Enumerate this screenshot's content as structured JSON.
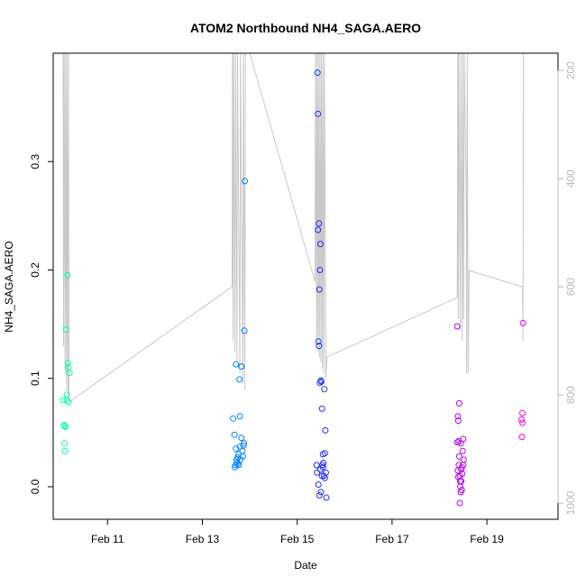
{
  "chart_data": {
    "type": "scatter",
    "title": "ATOM2 Northbound NH4_SAGA.AERO",
    "xlabel": "Date",
    "ylabel": "NH4_SAGA.AERO",
    "x_ticks": [
      "Feb 11",
      "Feb 13",
      "Feb 15",
      "Feb 17",
      "Feb 19"
    ],
    "y_ticks": [
      "0.0",
      "0.1",
      "0.2",
      "0.3"
    ],
    "y2_ticks": [
      "200",
      "400",
      "600",
      "800",
      "1000"
    ],
    "xlim": [
      "2016-02-09 20:30",
      "2016-02-20 12:00"
    ],
    "ylim": [
      -0.03,
      0.4
    ],
    "y2lim": [
      1030,
      168
    ],
    "y2_reversed": true,
    "grid": false,
    "legend": "none",
    "colors": {
      "points_gradient": [
        "#00ffb3",
        "#00ccff",
        "#0040ff",
        "#8000ff",
        "#ff00e6"
      ],
      "secondary_line": "#c8c8c8",
      "secondary_axis": "#b8b8b8"
    },
    "series": [
      {
        "values": [
          [
            "2016-02-10 01:30",
            0.08
          ],
          [
            "2016-02-10 02:00",
            0.057
          ],
          [
            "2016-02-10 02:15",
            0.056
          ],
          [
            "2016-02-10 02:15",
            0.04
          ],
          [
            "2016-02-10 02:30",
            0.033
          ],
          [
            "2016-02-10 03:00",
            0.145
          ],
          [
            "2016-02-10 03:00",
            0.055
          ],
          [
            "2016-02-10 03:15",
            0.08
          ],
          [
            "2016-02-10 03:30",
            0.085
          ],
          [
            "2016-02-10 03:45",
            0.195
          ],
          [
            "2016-02-10 04:00",
            0.114
          ],
          [
            "2016-02-10 04:15",
            0.11
          ],
          [
            "2016-02-10 04:15",
            0.078
          ],
          [
            "2016-02-10 04:45",
            0.105
          ],
          [
            "2016-02-13 15:30",
            0.063
          ],
          [
            "2016-02-13 16:15",
            0.048
          ],
          [
            "2016-02-13 16:30",
            0.018
          ],
          [
            "2016-02-13 16:45",
            0.02
          ],
          [
            "2016-02-13 17:00",
            0.113
          ],
          [
            "2016-02-13 17:00",
            0.035
          ],
          [
            "2016-02-13 17:15",
            0.025
          ],
          [
            "2016-02-13 17:30",
            0.023
          ],
          [
            "2016-02-13 17:45",
            0.021
          ],
          [
            "2016-02-13 18:00",
            0.027
          ],
          [
            "2016-02-13 18:15",
            0.03
          ],
          [
            "2016-02-13 18:30",
            0.02
          ],
          [
            "2016-02-13 18:45",
            0.099
          ],
          [
            "2016-02-13 19:00",
            0.065
          ],
          [
            "2016-02-13 19:00",
            0.037
          ],
          [
            "2016-02-13 19:15",
            0.025
          ],
          [
            "2016-02-13 19:45",
            0.111
          ],
          [
            "2016-02-13 19:45",
            0.045
          ],
          [
            "2016-02-13 20:15",
            0.033
          ],
          [
            "2016-02-13 20:30",
            0.028
          ],
          [
            "2016-02-13 20:45",
            0.038
          ],
          [
            "2016-02-13 21:00",
            0.04
          ],
          [
            "2016-02-13 21:15",
            0.144
          ],
          [
            "2016-02-13 21:30",
            0.282
          ],
          [
            "2016-02-15 09:45",
            0.02
          ],
          [
            "2016-02-15 10:00",
            0.013
          ],
          [
            "2016-02-15 10:15",
            0.382
          ],
          [
            "2016-02-15 10:30",
            0.344
          ],
          [
            "2016-02-15 10:30",
            0.237
          ],
          [
            "2016-02-15 10:45",
            0.134
          ],
          [
            "2016-02-15 10:45",
            0.002
          ],
          [
            "2016-02-15 11:00",
            0.243
          ],
          [
            "2016-02-15 11:00",
            0.13
          ],
          [
            "2016-02-15 11:15",
            0.182
          ],
          [
            "2016-02-15 11:15",
            -0.008
          ],
          [
            "2016-02-15 11:30",
            0.2
          ],
          [
            "2016-02-15 11:30",
            0.096
          ],
          [
            "2016-02-15 11:45",
            0.224
          ],
          [
            "2016-02-15 11:45",
            0.016
          ],
          [
            "2016-02-15 12:00",
            0.098
          ],
          [
            "2016-02-15 12:00",
            -0.005
          ],
          [
            "2016-02-15 12:15",
            0.097
          ],
          [
            "2016-02-15 12:30",
            0.072
          ],
          [
            "2016-02-15 12:30",
            0.01
          ],
          [
            "2016-02-15 12:45",
            0.02
          ],
          [
            "2016-02-15 13:00",
            0.03
          ],
          [
            "2016-02-15 13:00",
            0.018
          ],
          [
            "2016-02-15 13:15",
            0.022
          ],
          [
            "2016-02-15 13:30",
            0.01
          ],
          [
            "2016-02-15 13:45",
            0.09
          ],
          [
            "2016-02-15 14:00",
            0.031
          ],
          [
            "2016-02-15 14:00",
            0.008
          ],
          [
            "2016-02-15 14:15",
            0.052
          ],
          [
            "2016-02-15 14:30",
            0.013
          ],
          [
            "2016-02-15 14:45",
            -0.01
          ],
          [
            "2016-02-18 09:00",
            0.148
          ],
          [
            "2016-02-18 09:00",
            0.041
          ],
          [
            "2016-02-18 09:15",
            0.065
          ],
          [
            "2016-02-18 09:15",
            0.015
          ],
          [
            "2016-02-18 09:30",
            0.061
          ],
          [
            "2016-02-18 09:30",
            0.009
          ],
          [
            "2016-02-18 09:45",
            0.042
          ],
          [
            "2016-02-18 09:45",
            0.02
          ],
          [
            "2016-02-18 10:00",
            0.077
          ],
          [
            "2016-02-18 10:00",
            0.028
          ],
          [
            "2016-02-18 10:15",
            0.01
          ],
          [
            "2016-02-18 10:15",
            -0.015
          ],
          [
            "2016-02-18 10:30",
            0.005
          ],
          [
            "2016-02-18 10:30",
            0.0
          ],
          [
            "2016-02-18 10:45",
            0.04
          ],
          [
            "2016-02-18 10:45",
            -0.005
          ],
          [
            "2016-02-18 11:00",
            0.016
          ],
          [
            "2016-02-18 11:00",
            0.005
          ],
          [
            "2016-02-18 11:15",
            0.018
          ],
          [
            "2016-02-18 11:15",
            -0.003
          ],
          [
            "2016-02-18 11:30",
            0.012
          ],
          [
            "2016-02-18 11:45",
            0.033
          ],
          [
            "2016-02-18 12:00",
            0.044
          ],
          [
            "2016-02-18 12:00",
            0.02
          ],
          [
            "2016-02-18 12:15",
            0.025
          ],
          [
            "2016-02-19 17:30",
            0.062
          ],
          [
            "2016-02-19 17:45",
            0.046
          ],
          [
            "2016-02-19 18:00",
            0.068
          ],
          [
            "2016-02-19 18:00",
            0.059
          ],
          [
            "2016-02-19 18:15",
            0.151
          ]
        ]
      },
      {
        "axis": "right",
        "style": "line",
        "values": [
          [
            "2016-02-10 01:30",
            168
          ],
          [
            "2016-02-10 01:45",
            710
          ],
          [
            "2016-02-10 02:00",
            168
          ],
          [
            "2016-02-10 02:30",
            760
          ],
          [
            "2016-02-10 02:45",
            168
          ],
          [
            "2016-02-10 03:15",
            790
          ],
          [
            "2016-02-10 03:30",
            168
          ],
          [
            "2016-02-10 04:00",
            800
          ],
          [
            "2016-02-10 04:15",
            168
          ],
          [
            "2016-02-10 04:30",
            808
          ],
          [
            "2016-02-10 05:00",
            812
          ],
          [
            "2016-02-13 15:00",
            600
          ],
          [
            "2016-02-13 15:15",
            168
          ],
          [
            "2016-02-13 15:30",
            700
          ],
          [
            "2016-02-13 15:45",
            168
          ],
          [
            "2016-02-13 16:30",
            720
          ],
          [
            "2016-02-13 16:45",
            168
          ],
          [
            "2016-02-13 17:30",
            740
          ],
          [
            "2016-02-13 17:45",
            168
          ],
          [
            "2016-02-13 19:00",
            760
          ],
          [
            "2016-02-13 19:15",
            168
          ],
          [
            "2016-02-13 20:30",
            780
          ],
          [
            "2016-02-13 20:45",
            168
          ],
          [
            "2016-02-13 21:30",
            790
          ],
          [
            "2016-02-13 21:45",
            168
          ],
          [
            "2016-02-14 00:00",
            168
          ],
          [
            "2016-02-15 09:00",
            590
          ],
          [
            "2016-02-15 09:15",
            168
          ],
          [
            "2016-02-15 09:45",
            700
          ],
          [
            "2016-02-15 10:00",
            168
          ],
          [
            "2016-02-15 10:30",
            720
          ],
          [
            "2016-02-15 10:45",
            168
          ],
          [
            "2016-02-15 11:15",
            730
          ],
          [
            "2016-02-15 11:30",
            168
          ],
          [
            "2016-02-15 12:00",
            740
          ],
          [
            "2016-02-15 12:15",
            168
          ],
          [
            "2016-02-15 12:45",
            750
          ],
          [
            "2016-02-15 13:00",
            168
          ],
          [
            "2016-02-15 13:30",
            760
          ],
          [
            "2016-02-15 13:45",
            168
          ],
          [
            "2016-02-15 14:30",
            770
          ],
          [
            "2016-02-15 15:00",
            730
          ],
          [
            "2016-02-18 09:00",
            620
          ],
          [
            "2016-02-18 09:15",
            168
          ],
          [
            "2016-02-18 09:30",
            660
          ],
          [
            "2016-02-18 09:45",
            168
          ],
          [
            "2016-02-18 10:30",
            680
          ],
          [
            "2016-02-18 10:45",
            168
          ],
          [
            "2016-02-18 11:30",
            700
          ],
          [
            "2016-02-18 11:45",
            168
          ],
          [
            "2016-02-18 12:15",
            660
          ],
          [
            "2016-02-18 12:30",
            168
          ],
          [
            "2016-02-18 13:30",
            430
          ],
          [
            "2016-02-18 13:45",
            760
          ],
          [
            "2016-02-18 14:00",
            168
          ],
          [
            "2016-02-18 14:30",
            760
          ],
          [
            "2016-02-18 15:00",
            570
          ],
          [
            "2016-02-19 18:00",
            600
          ],
          [
            "2016-02-19 18:15",
            700
          ],
          [
            "2016-02-19 18:30",
            168
          ]
        ]
      }
    ]
  }
}
